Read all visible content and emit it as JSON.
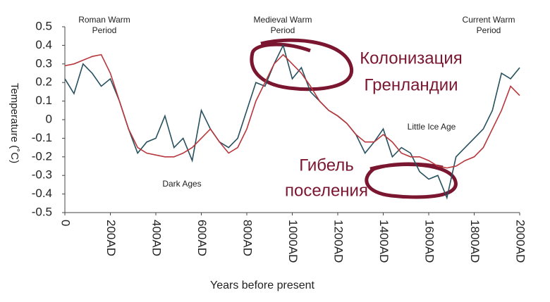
{
  "chart_data": {
    "type": "line",
    "xlabel": "Years before present",
    "ylabel": "Temperature (˚C)",
    "x": [
      0,
      40,
      80,
      120,
      160,
      200,
      240,
      280,
      320,
      360,
      400,
      440,
      480,
      520,
      560,
      600,
      640,
      680,
      720,
      760,
      800,
      840,
      880,
      920,
      960,
      1000,
      1040,
      1080,
      1120,
      1160,
      1200,
      1240,
      1280,
      1320,
      1360,
      1400,
      1440,
      1480,
      1520,
      1560,
      1600,
      1640,
      1680,
      1720,
      1760,
      1800,
      1840,
      1880,
      1920,
      1960,
      2000
    ],
    "series": [
      {
        "color": "#27505f",
        "values": [
          0.22,
          0.14,
          0.3,
          0.25,
          0.18,
          0.22,
          0.1,
          -0.05,
          -0.18,
          -0.12,
          -0.1,
          0.02,
          -0.15,
          -0.1,
          -0.22,
          0.05,
          -0.05,
          -0.12,
          -0.15,
          -0.1,
          0.05,
          0.2,
          0.18,
          0.3,
          0.4,
          0.22,
          0.28,
          0.15,
          0.1,
          0.05,
          0.02,
          -0.02,
          -0.08,
          -0.18,
          -0.12,
          -0.05,
          -0.2,
          -0.15,
          -0.18,
          -0.28,
          -0.32,
          -0.3,
          -0.42,
          -0.2,
          -0.15,
          -0.1,
          -0.05,
          0.05,
          0.25,
          0.22,
          0.28
        ]
      },
      {
        "color": "#b8363c",
        "values": [
          0.29,
          0.3,
          0.32,
          0.34,
          0.35,
          0.25,
          0.1,
          -0.05,
          -0.15,
          -0.18,
          -0.19,
          -0.2,
          -0.2,
          -0.18,
          -0.15,
          -0.1,
          -0.05,
          -0.12,
          -0.18,
          -0.15,
          -0.05,
          0.1,
          0.2,
          0.3,
          0.35,
          0.3,
          0.25,
          0.18,
          0.1,
          0.05,
          0.02,
          -0.02,
          -0.08,
          -0.12,
          -0.12,
          -0.08,
          -0.12,
          -0.18,
          -0.2,
          -0.2,
          -0.22,
          -0.25,
          -0.26,
          -0.25,
          -0.22,
          -0.2,
          -0.15,
          -0.05,
          0.05,
          0.18,
          0.13
        ]
      }
    ],
    "xlim": [
      0,
      2000
    ],
    "xticks": [
      0,
      {
        "value": 200,
        "label": "200AD"
      },
      {
        "value": 400,
        "label": "400AD"
      },
      {
        "value": 600,
        "label": "600AD"
      },
      {
        "value": 800,
        "label": "800AD"
      },
      {
        "value": 1000,
        "label": "1000AD"
      },
      {
        "value": 1200,
        "label": "1200AD"
      },
      {
        "value": 1400,
        "label": "1400AD"
      },
      {
        "value": 1600,
        "label": "1600AD"
      },
      {
        "value": 1800,
        "label": "1800AD"
      },
      {
        "value": 2000,
        "label": "2000AD"
      }
    ],
    "ylim": [
      -0.5,
      0.5
    ],
    "yticks": [
      0.5,
      0.4,
      0.3,
      0.2,
      0.1,
      0,
      -0.1,
      -0.2,
      -0.3,
      -0.4,
      -0.5
    ],
    "annotations": [
      {
        "lines": [
          "Roman Warm",
          "Period"
        ]
      },
      {
        "lines": [
          "Medieval Warm",
          "Period"
        ]
      },
      {
        "lines": [
          "Current Warm",
          "Period"
        ]
      },
      {
        "lines": [
          "Dark Ages"
        ]
      },
      {
        "lines": [
          "Little Ice Age"
        ]
      },
      {
        "lines": [
          "Колонизация",
          "Гренландии"
        ]
      },
      {
        "lines": [
          "Гибель",
          "поселения"
        ]
      }
    ]
  }
}
